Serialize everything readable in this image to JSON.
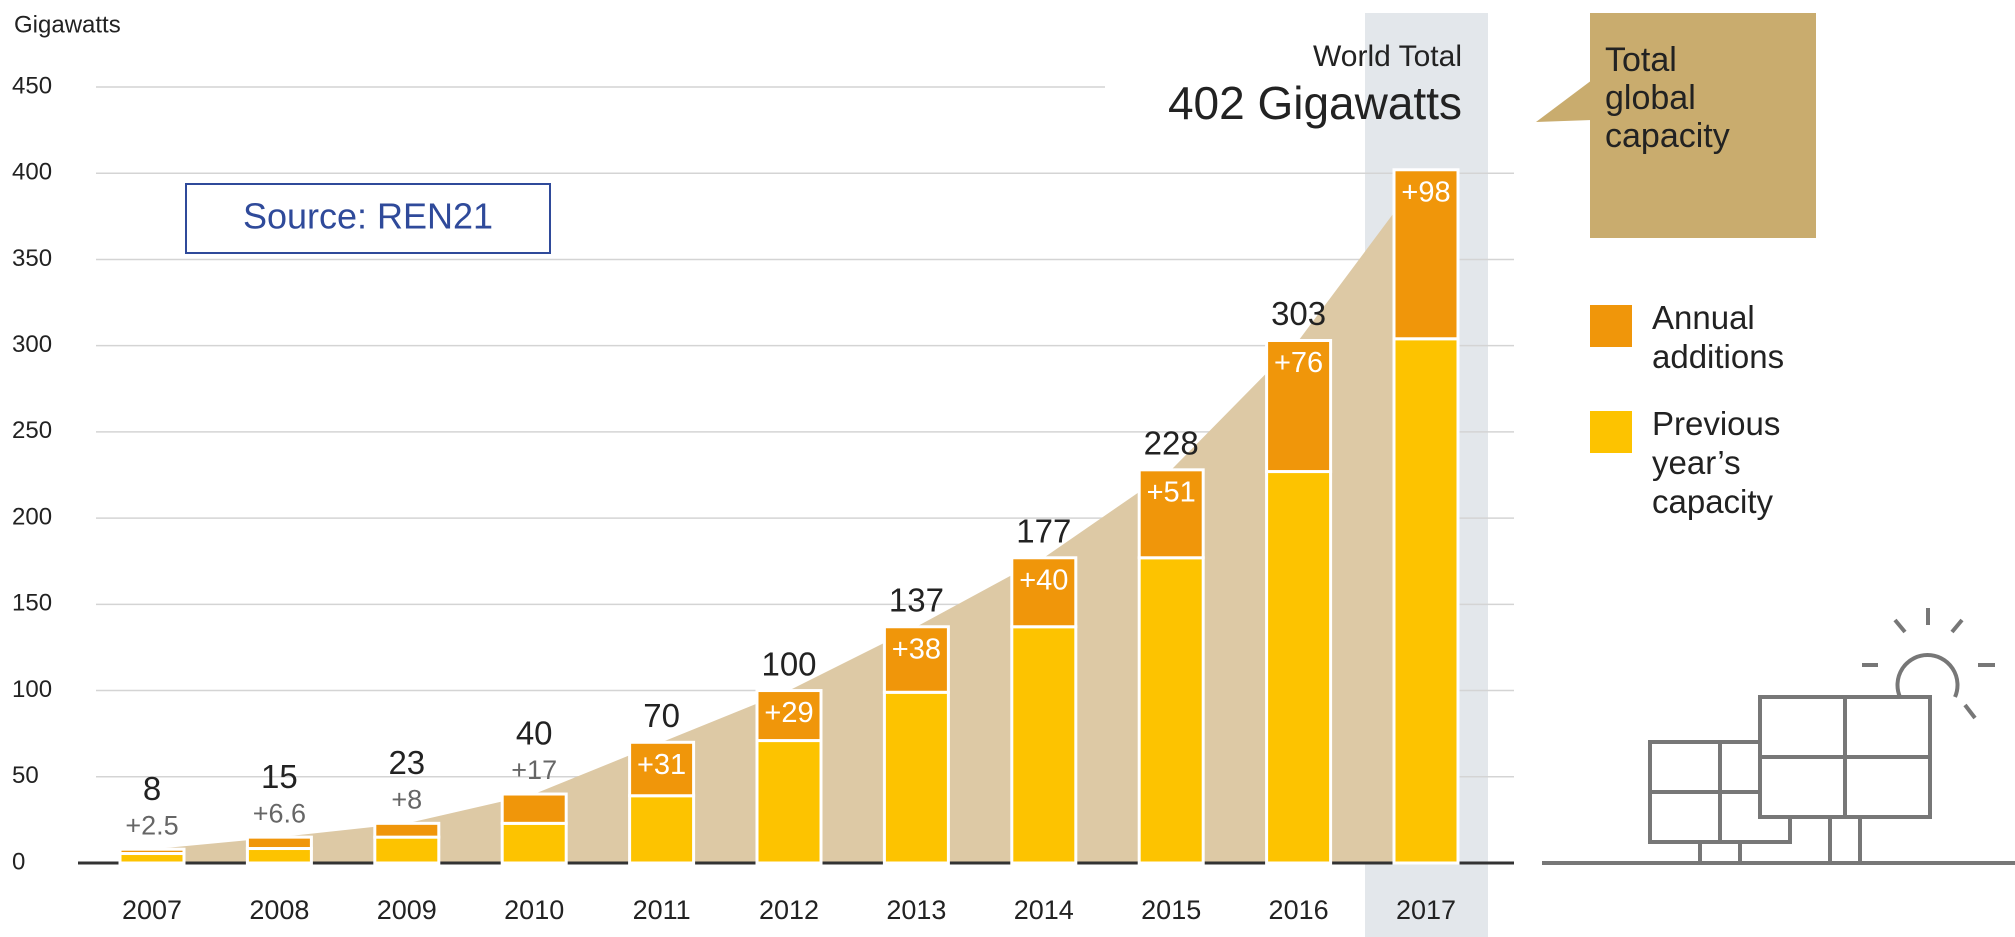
{
  "chart_data": {
    "type": "stacked_bar",
    "y_axis_label": "Gigawatts",
    "categories": [
      "2007",
      "2008",
      "2009",
      "2010",
      "2011",
      "2012",
      "2013",
      "2014",
      "2015",
      "2016",
      "2017"
    ],
    "series": [
      {
        "name": "Previous year’s capacity",
        "color": "#fdc300",
        "values": [
          5.5,
          8.4,
          15,
          23,
          39,
          71,
          99,
          137,
          177,
          227,
          304
        ]
      },
      {
        "name": "Annual additions",
        "color": "#f0960a",
        "values": [
          2.5,
          6.6,
          8,
          17,
          31,
          29,
          38,
          40,
          51,
          76,
          98
        ],
        "value_labels": [
          "+2.5",
          "+6.6",
          "+8",
          "+17",
          "+31",
          "+29",
          "+38",
          "+40",
          "+51",
          "+76",
          "+98"
        ]
      }
    ],
    "totals": [
      8,
      15,
      23,
      40,
      70,
      100,
      137,
      177,
      228,
      303,
      402
    ],
    "total_area": {
      "name": "Total global capacity",
      "color": "#ddc9a5"
    },
    "annotation": {
      "title": "World Total",
      "text": "402 Gigawatts"
    },
    "source": "Source: REN21",
    "ylim": [
      0,
      450
    ],
    "yticks": [
      0,
      50,
      100,
      150,
      200,
      250,
      300,
      350,
      400,
      450
    ],
    "grid": true
  }
}
